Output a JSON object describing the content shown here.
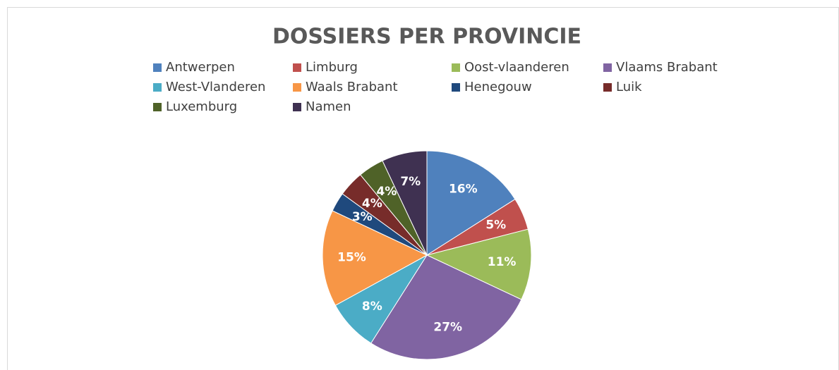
{
  "chart_data": {
    "type": "pie",
    "title": "DOSSIERS PER PROVINCIE",
    "categories": [
      "Antwerpen",
      "Limburg",
      "Oost-vlaanderen",
      "Vlaams Brabant",
      "West-Vlanderen",
      "Waals Brabant",
      "Henegouw",
      "Luik",
      "Luxemburg",
      "Namen"
    ],
    "values": [
      16,
      5,
      11,
      27,
      8,
      15,
      3,
      4,
      4,
      7
    ],
    "value_labels": [
      "16%",
      "5%",
      "11%",
      "27%",
      "8%",
      "15%",
      "3%",
      "4%",
      "4%",
      "7%"
    ],
    "colors": [
      "#4f81bd",
      "#c0504d",
      "#9bbb59",
      "#8064a2",
      "#4bacc6",
      "#f79646",
      "#1f497d",
      "#772c2a",
      "#4f6228",
      "#3f3151"
    ],
    "legend": "top"
  }
}
